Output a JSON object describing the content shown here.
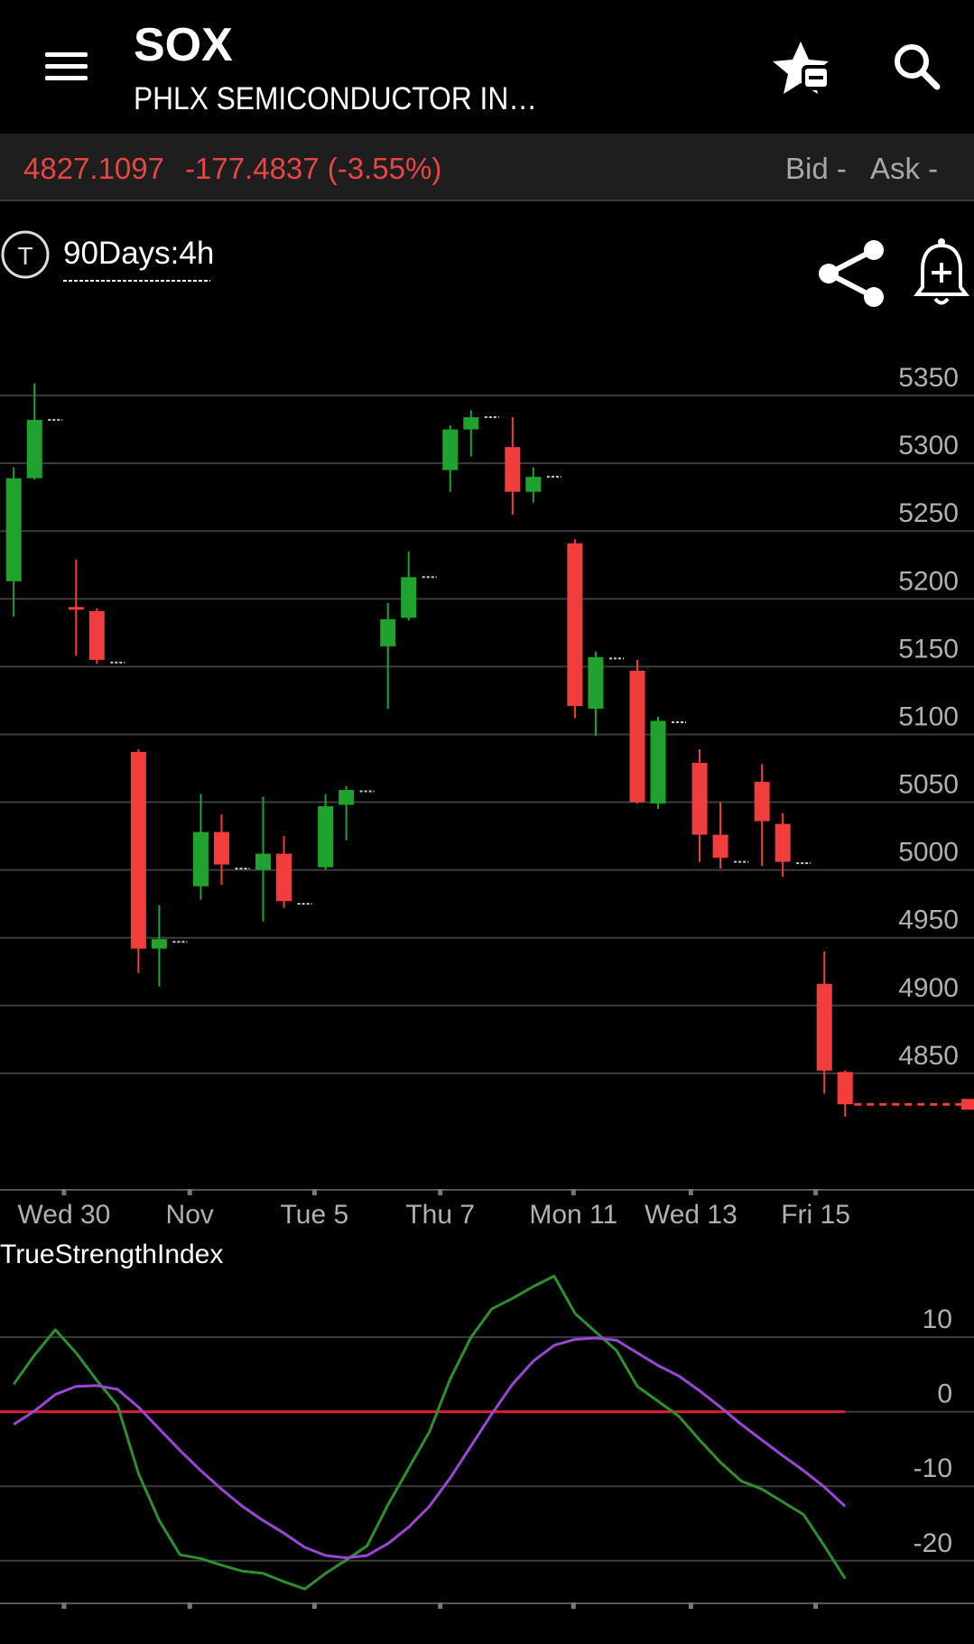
{
  "header": {
    "symbol": "SOX",
    "name": "PHLX SEMICONDUCTOR IN…"
  },
  "quote": {
    "last": "4827.1097",
    "change": "-177.4837 (-3.55%)",
    "bid": "Bid -",
    "ask": "Ask -"
  },
  "toolbar": {
    "badge": "T",
    "interval": "90Days:4h"
  },
  "chart_data": [
    {
      "type": "candlestick",
      "x": [
        0,
        1,
        3,
        4,
        6,
        7,
        9,
        10,
        12,
        13,
        15,
        16,
        18,
        19,
        21,
        22,
        24,
        25,
        27,
        28,
        30,
        31,
        33,
        34,
        36,
        37,
        39,
        40
      ],
      "open": [
        5213,
        5289,
        5194,
        5191,
        5087,
        4942,
        4988,
        5028,
        5000,
        5012,
        5002,
        5048,
        5165,
        5186,
        5295,
        5325,
        5312,
        5279,
        5241,
        5119,
        5147,
        5049,
        5079,
        5026,
        5065,
        5034,
        4916,
        4851
      ],
      "high": [
        5297,
        5359,
        5229,
        5193,
        5089,
        4974,
        5056,
        5041,
        5054,
        5025,
        5056,
        5062,
        5197,
        5235,
        5328,
        5339,
        5334,
        5297,
        5244,
        5161,
        5155,
        5113,
        5089,
        5050,
        5078,
        5042,
        4940,
        4852
      ],
      "low": [
        5187,
        5288,
        5158,
        5152,
        4924,
        4914,
        4978,
        4989,
        4962,
        4972,
        5000,
        5022,
        5119,
        5184,
        5279,
        5305,
        5262,
        5271,
        5112,
        5099,
        5049,
        5045,
        5006,
        5001,
        5003,
        4995,
        4835,
        4818
      ],
      "close": [
        5289,
        5332,
        5192,
        5155,
        4942,
        4949,
        5028,
        5004,
        5012,
        4977,
        5047,
        5059,
        5185,
        5216,
        5325,
        5334,
        5279,
        5290,
        5121,
        5157,
        5050,
        5110,
        5026,
        5009,
        5036,
        5006,
        4852,
        4827.1097
      ],
      "up_color": "#1fa22e",
      "down_color": "#f23d3d",
      "markers": {
        "x": [
          2,
          5,
          8,
          11,
          14,
          17,
          20,
          23,
          26,
          29,
          32,
          35,
          38
        ],
        "values": [
          5332,
          5153,
          4947,
          5001,
          4975,
          5058,
          5216,
          5334,
          5290,
          5156,
          5109,
          5006,
          5005
        ],
        "color": "#cccccc"
      },
      "last_price_line": true,
      "xlim": [
        -0.66,
        46.2
      ],
      "ylim": [
        4764,
        5410
      ],
      "xticks": [
        {
          "value": 2.42,
          "label": "Wed 30"
        },
        {
          "value": 8.47,
          "label": "Nov"
        },
        {
          "value": 14.47,
          "label": "Tue 5"
        },
        {
          "value": 20.52,
          "label": "Thu 7"
        },
        {
          "value": 26.93,
          "label": "Mon 11"
        },
        {
          "value": 32.58,
          "label": "Wed 13"
        },
        {
          "value": 38.58,
          "label": "Fri 15"
        }
      ],
      "yticks": [
        4850,
        4900,
        4950,
        5000,
        5050,
        5100,
        5150,
        5200,
        5250,
        5300,
        5350
      ],
      "grid": true
    },
    {
      "type": "line",
      "title": "TrueStrengthIndex",
      "x": [
        0,
        1,
        2,
        3,
        4,
        5,
        6,
        7,
        8,
        9,
        10,
        11,
        12,
        13,
        14,
        15,
        16,
        17,
        18,
        19,
        20,
        21,
        22,
        23,
        24,
        25,
        26,
        27,
        28,
        29,
        30,
        31,
        32,
        33,
        34,
        35,
        36,
        37,
        38,
        39,
        40
      ],
      "series": [
        {
          "color": "#2e8f2e",
          "values": [
            3.7,
            7.6,
            11.0,
            7.9,
            4.2,
            0.8,
            -8.3,
            -14.6,
            -19.2,
            -19.7,
            -20.6,
            -21.4,
            -21.7,
            -22.8,
            -23.8,
            -21.7,
            -19.9,
            -18.0,
            -12.5,
            -7.6,
            -2.7,
            4.4,
            10.0,
            13.8,
            15.2,
            16.8,
            18.2,
            13.2,
            10.7,
            8.2,
            3.4,
            1.4,
            -0.6,
            -3.8,
            -6.8,
            -9.3,
            -10.4,
            -12.1,
            -13.8,
            -18.0,
            -22.4
          ]
        },
        {
          "color": "#9a45d4",
          "values": [
            -1.7,
            0.1,
            2.3,
            3.4,
            3.5,
            3.0,
            0.6,
            -2.3,
            -5.2,
            -7.9,
            -10.4,
            -12.7,
            -14.6,
            -16.3,
            -18.2,
            -19.3,
            -19.6,
            -19.3,
            -17.7,
            -15.5,
            -12.7,
            -8.9,
            -4.6,
            -0.3,
            3.7,
            6.8,
            8.9,
            9.7,
            9.9,
            9.6,
            7.9,
            6.2,
            4.8,
            2.8,
            0.6,
            -1.7,
            -3.8,
            -5.9,
            -7.9,
            -10.1,
            -12.7
          ]
        }
      ],
      "reference_line": {
        "value": 0,
        "color": "#e0202a"
      },
      "xlim": [
        -0.66,
        46.2
      ],
      "ylim": [
        -25.6,
        18.5
      ],
      "yticks": [
        -20,
        -10,
        0,
        10
      ],
      "grid": true
    }
  ]
}
